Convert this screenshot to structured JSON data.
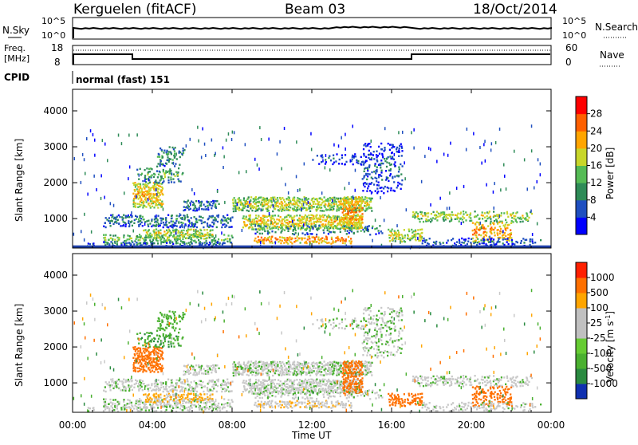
{
  "header": {
    "station": "Kerguelen (fitACF)",
    "beam": "Beam 03",
    "date": "18/Oct/2014"
  },
  "summary_panels": {
    "nsky_label": "N.Sky",
    "nsky_ticks": [
      "10^5",
      "10^0"
    ],
    "nsearch_label": "N.Search",
    "nsearch_ticks": [
      "10^5",
      "10^0"
    ],
    "freq_label_line1": "Freq.",
    "freq_label_line2": "[MHz]",
    "freq_ticks": [
      "18",
      "8"
    ],
    "nave_label": "Nave",
    "nave_ticks": [
      "60",
      "0"
    ],
    "cpid_label": "CPID",
    "cpid_text": "normal (fast) 151"
  },
  "chart_data": [
    {
      "type": "heatmap",
      "name": "power",
      "xlabel": "",
      "ylabel": "Slant Range [km]",
      "x_range_hours": [
        0,
        24
      ],
      "ylim": [
        180,
        4600
      ],
      "yticks": [
        1000,
        2000,
        3000,
        4000
      ],
      "ytick_labels": [
        "1000",
        "2000",
        "3000",
        "4000"
      ],
      "colorbar_label": "Power [dB]",
      "colorbar_ticks": [
        "4",
        "8",
        "12",
        "16",
        "20",
        "24",
        "28"
      ],
      "colorbar_colors": [
        "#0000ff",
        "#1f4fc0",
        "#2e8b57",
        "#55bb55",
        "#c8d62a",
        "#ffa500",
        "#ff6000",
        "#ff0000"
      ]
    },
    {
      "type": "heatmap",
      "name": "velocity",
      "xlabel": "Time UT",
      "ylabel": "Slant Range [km]",
      "x_range_hours": [
        0,
        24
      ],
      "xtick_labels": [
        "00:00",
        "04:00",
        "08:00",
        "12:00",
        "16:00",
        "20:00",
        "00:00"
      ],
      "ylim": [
        180,
        4600
      ],
      "yticks": [
        1000,
        2000,
        3000,
        4000
      ],
      "ytick_labels": [
        "1000",
        "2000",
        "3000",
        "4000"
      ],
      "colorbar_label": "Velocity [m s",
      "colorbar_label_sup": "-1",
      "colorbar_label_end": "]",
      "colorbar_ticks": [
        "1000",
        "500",
        "100",
        "25",
        "-25",
        "-100",
        "-500",
        "-1000"
      ],
      "colorbar_colors": [
        "#1030b0",
        "#2a8a40",
        "#4ab030",
        "#66cc33",
        "#c0c0c0",
        "#c0c0c0",
        "#ffa500",
        "#ff7000",
        "#ff2000"
      ]
    }
  ]
}
